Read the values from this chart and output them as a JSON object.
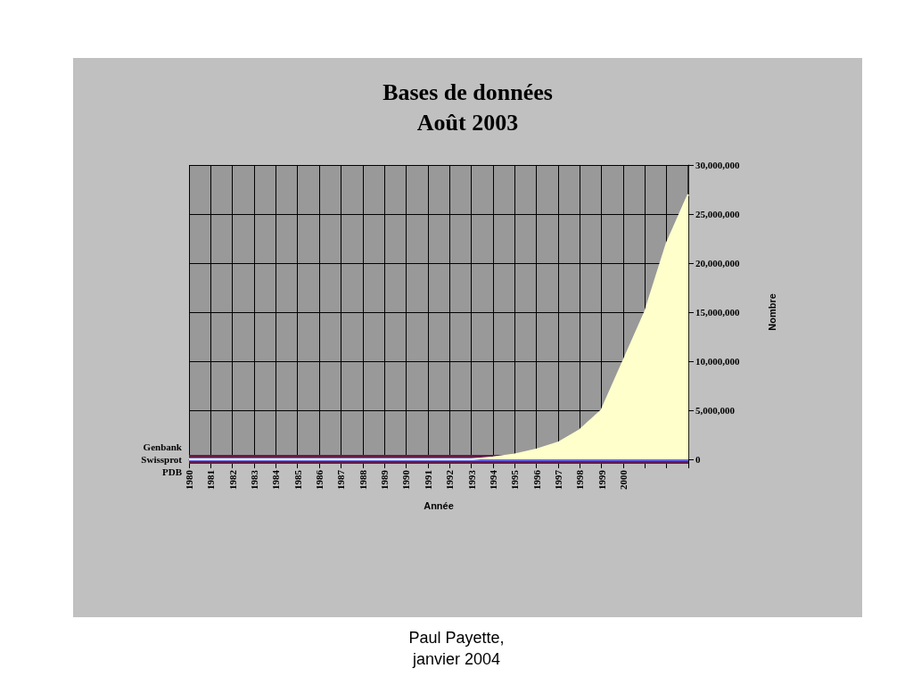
{
  "chart_data": {
    "type": "area",
    "title": "Bases de données\nAoût 2003",
    "xlabel": "Année",
    "ylabel": "Nombre",
    "categories": [
      "1980",
      "1981",
      "1982",
      "1983",
      "1984",
      "1985",
      "1986",
      "1987",
      "1988",
      "1989",
      "1990",
      "1991",
      "1992",
      "1993",
      "1994",
      "1995",
      "1996",
      "1997",
      "1998",
      "1999",
      "2000",
      null,
      null,
      null
    ],
    "series": [
      {
        "name": "Genbank",
        "color": "#ffffcc",
        "values": [
          0,
          0,
          0,
          0,
          0,
          0,
          0,
          0,
          0,
          0,
          0,
          0,
          0,
          0,
          200000,
          500000,
          1000000,
          1700000,
          3000000,
          5000000,
          10000000,
          15000000,
          22000000,
          27000000
        ]
      },
      {
        "name": "Swissprot",
        "type": "line",
        "color": "#661a4d",
        "values": [
          0,
          0,
          0,
          0,
          0,
          0,
          0,
          0,
          0,
          0,
          0,
          0,
          0,
          0,
          0,
          0,
          0,
          0,
          0,
          0,
          0,
          0,
          0,
          0
        ]
      },
      {
        "name": "PDB",
        "type": "line",
        "color": "#6666e6",
        "values": [
          0,
          0,
          0,
          0,
          0,
          0,
          0,
          0,
          0,
          0,
          0,
          0,
          0,
          0,
          0,
          0,
          0,
          0,
          0,
          0,
          0,
          0,
          0,
          0
        ]
      }
    ],
    "ylim": [
      0,
      30000000
    ],
    "yticks": [
      0,
      {
        "value": 5000000,
        "label": "5,000,000"
      },
      {
        "value": 10000000,
        "label": "10,000,000"
      },
      {
        "value": 15000000,
        "label": "15,000,000"
      },
      {
        "value": 20000000,
        "label": "20,000,000"
      },
      {
        "value": 25000000,
        "label": "25,000,000"
      },
      {
        "value": 30000000,
        "label": "30,000,000"
      }
    ],
    "grid": true,
    "annotations": [
      "Paul Payette,\njanvier 2004"
    ]
  }
}
